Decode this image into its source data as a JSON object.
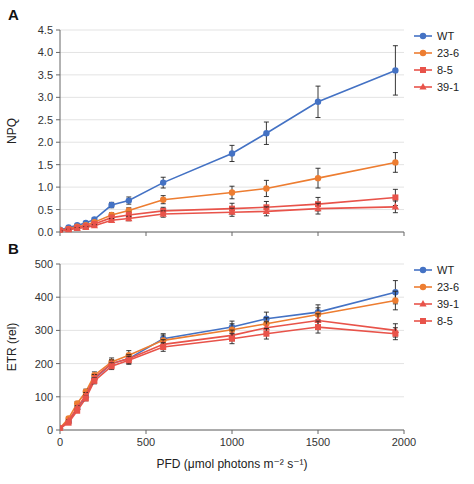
{
  "chart_data": [
    {
      "type": "line",
      "title": "A",
      "ylabel": "NPQ",
      "x": [
        0,
        50,
        100,
        150,
        200,
        300,
        400,
        600,
        1000,
        1200,
        1500,
        1950
      ],
      "xlim": [
        0,
        2000
      ],
      "xticks": [
        0,
        500,
        1000,
        1500,
        2000
      ],
      "ylim": [
        0,
        4.5
      ],
      "yticks": [
        {
          "value": 0,
          "label": "0.0"
        },
        0.5,
        {
          "value": 1,
          "label": "1.0"
        },
        1.5,
        {
          "value": 2,
          "label": "2.0"
        },
        2.5,
        {
          "value": 3,
          "label": "3.0"
        },
        3.5,
        {
          "value": 4,
          "label": "4.0"
        },
        4.5
      ],
      "grid": true,
      "legend": "right",
      "tick_labels": "y",
      "series": [
        {
          "name": "WT",
          "color": "#4472C4",
          "marker": "circle",
          "values": [
            0.05,
            0.1,
            0.15,
            0.2,
            0.28,
            0.6,
            0.7,
            1.1,
            1.75,
            2.2,
            2.9,
            3.6
          ],
          "yerr": [
            0.02,
            0.02,
            0.02,
            0.03,
            0.04,
            0.06,
            0.08,
            0.12,
            0.18,
            0.25,
            0.35,
            0.55
          ]
        },
        {
          "name": "23-6",
          "color": "#ED7D31",
          "marker": "circle",
          "values": [
            0.04,
            0.07,
            0.12,
            0.15,
            0.22,
            0.38,
            0.48,
            0.72,
            0.88,
            0.97,
            1.2,
            1.55
          ],
          "yerr": [
            0.01,
            0.02,
            0.02,
            0.02,
            0.03,
            0.05,
            0.06,
            0.09,
            0.14,
            0.18,
            0.22,
            0.22
          ]
        },
        {
          "name": "8-5",
          "color": "#E8534A",
          "marker": "square",
          "values": [
            0.03,
            0.06,
            0.1,
            0.13,
            0.18,
            0.32,
            0.38,
            0.47,
            0.52,
            0.55,
            0.62,
            0.77
          ],
          "yerr": [
            0.01,
            0.01,
            0.02,
            0.02,
            0.03,
            0.05,
            0.06,
            0.08,
            0.12,
            0.13,
            0.15,
            0.18
          ]
        },
        {
          "name": "39-1",
          "color": "#E8534A",
          "marker": "triangle",
          "values": [
            0.02,
            0.05,
            0.08,
            0.1,
            0.14,
            0.26,
            0.3,
            0.4,
            0.44,
            0.46,
            0.52,
            0.56
          ],
          "yerr": [
            0.01,
            0.01,
            0.02,
            0.02,
            0.02,
            0.04,
            0.05,
            0.07,
            0.09,
            0.1,
            0.12,
            0.13
          ]
        }
      ]
    },
    {
      "type": "line",
      "title": "B",
      "ylabel": "ETR (rel)",
      "xlabel": "PFD (μmol photons m⁻² s⁻¹)",
      "x": [
        0,
        50,
        100,
        150,
        200,
        300,
        400,
        600,
        1000,
        1200,
        1500,
        1950
      ],
      "xlim": [
        0,
        2000
      ],
      "xticks": [
        0,
        500,
        1000,
        1500,
        2000
      ],
      "ylim": [
        0,
        500
      ],
      "yticks": [
        0,
        100,
        200,
        300,
        400,
        500
      ],
      "grid": true,
      "legend": "right",
      "series": [
        {
          "name": "WT",
          "color": "#4472C4",
          "marker": "circle",
          "values": [
            5,
            25,
            65,
            100,
            155,
            200,
            215,
            275,
            310,
            335,
            355,
            415
          ],
          "yerr": [
            2,
            3,
            5,
            8,
            10,
            12,
            15,
            15,
            18,
            20,
            22,
            35
          ]
        },
        {
          "name": "23-6",
          "color": "#ED7D31",
          "marker": "circle",
          "values": [
            5,
            35,
            80,
            115,
            165,
            205,
            225,
            270,
            302,
            320,
            348,
            390
          ],
          "yerr": [
            2,
            4,
            6,
            8,
            10,
            12,
            14,
            16,
            18,
            18,
            20,
            28
          ]
        },
        {
          "name": "39-1",
          "color": "#E8534A",
          "marker": "triangle",
          "values": [
            5,
            28,
            68,
            105,
            158,
            200,
            215,
            258,
            285,
            308,
            330,
            300
          ],
          "yerr": [
            2,
            3,
            5,
            8,
            9,
            11,
            12,
            14,
            16,
            18,
            20,
            20
          ]
        },
        {
          "name": "8-5",
          "color": "#E8534A",
          "marker": "square",
          "values": [
            5,
            22,
            58,
            95,
            148,
            192,
            210,
            250,
            275,
            290,
            310,
            290
          ],
          "yerr": [
            2,
            3,
            5,
            7,
            9,
            10,
            12,
            13,
            15,
            16,
            18,
            18
          ]
        }
      ]
    }
  ]
}
